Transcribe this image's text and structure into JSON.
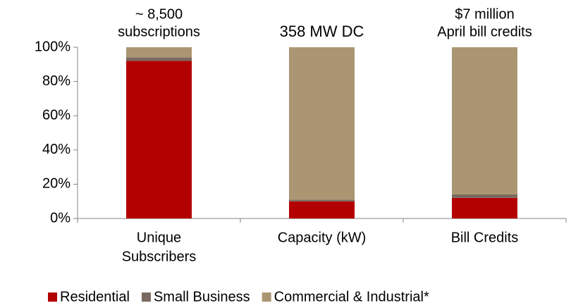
{
  "chart_data": {
    "type": "stacked_bar",
    "categories": [
      [
        "Unique",
        "Subscribers"
      ],
      [
        "Capacity (kW)"
      ],
      [
        "Bill Credits"
      ]
    ],
    "annotations": [
      [
        "~ 8,500",
        "subscriptions"
      ],
      [
        "358 MW DC"
      ],
      [
        "$7 million",
        "April bill credits"
      ]
    ],
    "series": [
      {
        "name": "Residential",
        "color": "#b30000",
        "values": [
          92,
          10,
          12
        ]
      },
      {
        "name": "Small Business",
        "color": "#7a6a60",
        "values": [
          2,
          1,
          2
        ]
      },
      {
        "name": "Commercial & Industrial*",
        "color": "#ab9673",
        "values": [
          6,
          89,
          86
        ]
      }
    ],
    "ylim": [
      0,
      100
    ],
    "yticks": [
      {
        "value": 0,
        "label": "0%"
      },
      {
        "value": 20,
        "label": "20%"
      },
      {
        "value": 40,
        "label": "40%"
      },
      {
        "value": 60,
        "label": "60%"
      },
      {
        "value": 80,
        "label": "80%"
      },
      {
        "value": 100,
        "label": "100%"
      }
    ],
    "legend": "bottom"
  }
}
